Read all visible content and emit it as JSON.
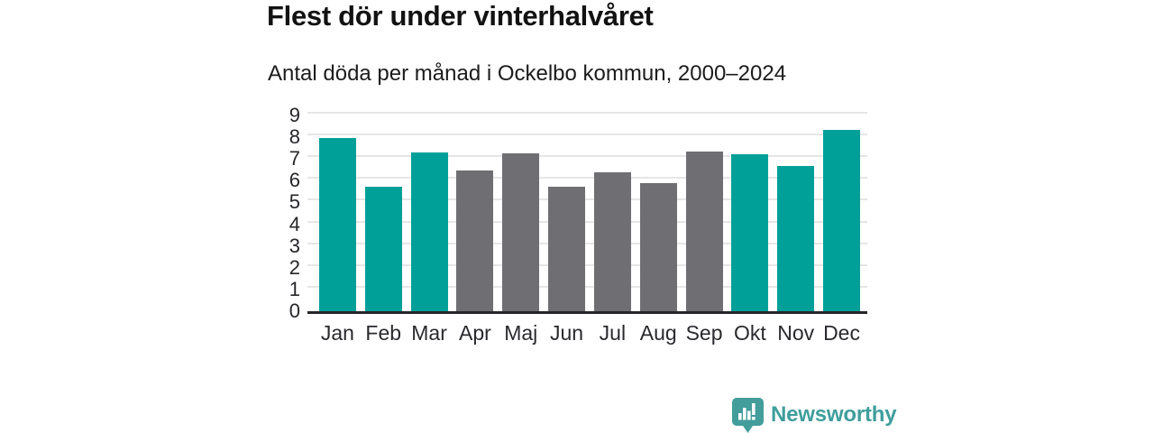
{
  "chart_data": {
    "type": "bar",
    "title": "Flest dör under vinterhalvåret",
    "subtitle": "Antal döda per månad i Ockelbo kommun, 2000–2024",
    "categories": [
      "Jan",
      "Feb",
      "Mar",
      "Apr",
      "Maj",
      "Jun",
      "Jul",
      "Aug",
      "Sep",
      "Okt",
      "Nov",
      "Dec"
    ],
    "values": [
      7.96,
      5.72,
      7.32,
      6.48,
      7.24,
      5.72,
      6.4,
      5.88,
      7.36,
      7.2,
      6.68,
      8.32
    ],
    "colors": [
      "#00a099",
      "#00a099",
      "#00a099",
      "#6f6e72",
      "#6f6e72",
      "#6f6e72",
      "#6f6e72",
      "#6f6e72",
      "#6f6e72",
      "#00a099",
      "#00a099",
      "#00a099"
    ],
    "xlabel": "",
    "ylabel": "",
    "ylim": [
      0,
      9
    ],
    "yticks": [
      0,
      1,
      2,
      3,
      4,
      5,
      6,
      7,
      8,
      9
    ],
    "grid": true,
    "legend": false,
    "accent_teal": "#00a099",
    "neutral_gray": "#6f6e72",
    "gridline_color": "#e6e6e6",
    "axis_line_color": "#26262a"
  },
  "footer": {
    "brand": "Newsworthy",
    "brand_color": "#3f9e9c",
    "logo_icon": "bar-chart-speech-bubble"
  }
}
